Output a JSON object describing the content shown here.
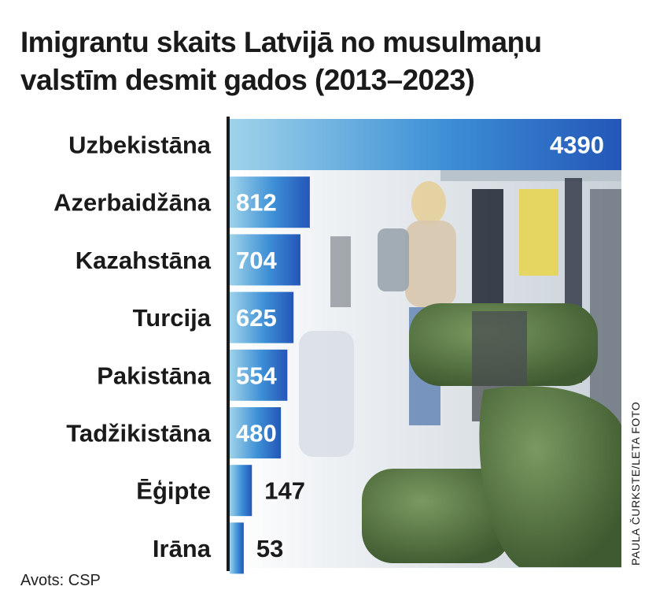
{
  "title": "Imigrantu skaits Latvijā no musulmaņu valstīm desmit gados (2013–2023)",
  "source": "Avots: CSP",
  "photo_credit": "PAULA ČURKSTE/LETA FOTO",
  "colors": {
    "bar_start": "#9fd3ea",
    "bar_mid": "#3d8fd6",
    "bar_end": "#2456b8",
    "axis": "#1a1a1a",
    "text": "#1a1a1a"
  },
  "chart_data": {
    "type": "bar",
    "orientation": "horizontal",
    "categories": [
      "Uzbekistāna",
      "Azerbaidžāna",
      "Kazahstāna",
      "Turcija",
      "Pakistāna",
      "Tadžikistāna",
      "Ēģipte",
      "Irāna"
    ],
    "values": [
      4390,
      812,
      704,
      625,
      554,
      480,
      147,
      53
    ],
    "title": "Imigrantu skaits Latvijā no musulmaņu valstīm desmit gados (2013–2023)",
    "xlabel": "",
    "ylabel": "",
    "xlim": [
      0,
      4390
    ],
    "grid": false,
    "legend": "none",
    "data_labels": true
  }
}
